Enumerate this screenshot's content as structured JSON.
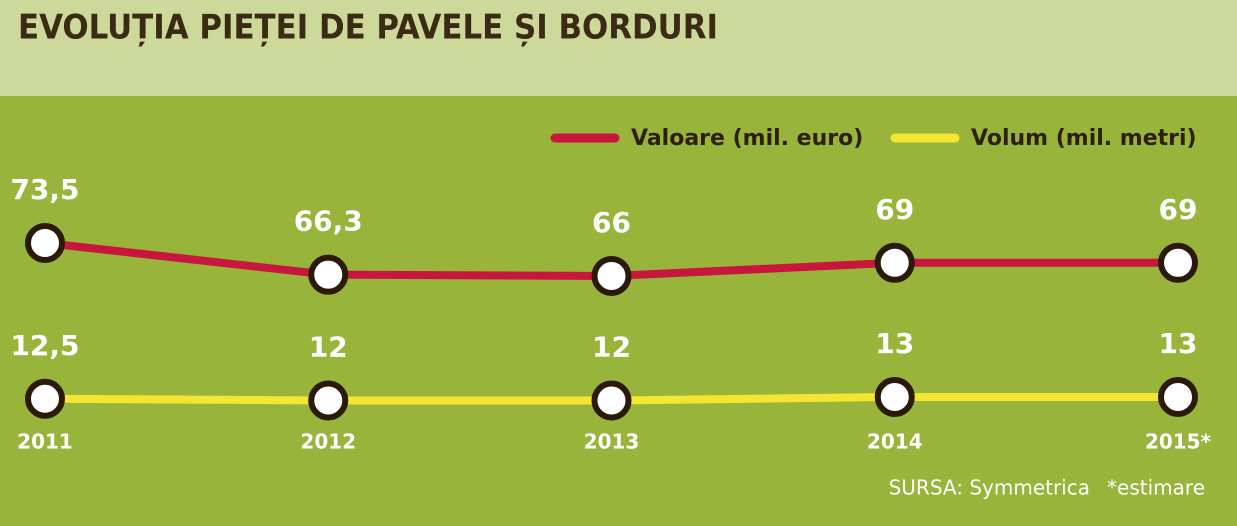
{
  "chart_data": {
    "type": "line",
    "title": "EVOLUȚIA PIEȚEI DE PAVELE ȘI BORDURI",
    "categories": [
      "2011",
      "2012",
      "2013",
      "2014",
      "2015*"
    ],
    "series": [
      {
        "name": "Valoare (mil. euro)",
        "color": "#c8173f",
        "values": [
          73.5,
          66.3,
          66,
          69,
          69
        ],
        "value_labels": [
          "73,5",
          "66,3",
          "66",
          "69",
          "69"
        ]
      },
      {
        "name": "Volum (mil. metri)",
        "color": "#f2e632",
        "values": [
          12.5,
          12,
          12,
          13,
          13
        ],
        "value_labels": [
          "12,5",
          "12",
          "12",
          "13",
          "13"
        ]
      }
    ],
    "source": "SURSA: Symmetrica",
    "note": "*estimare"
  }
}
